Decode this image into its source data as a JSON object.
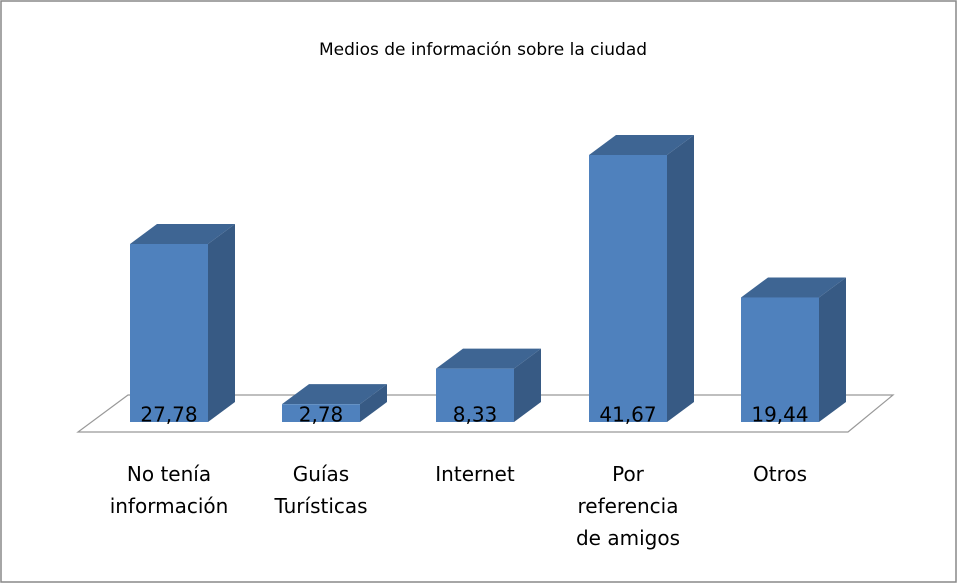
{
  "chart_data": {
    "type": "bar3d",
    "title": "Medios de información sobre la ciudad",
    "categories": [
      "No tenía información",
      "Guías Turísticas",
      "Internet",
      "Por referencia de amigos",
      "Otros"
    ],
    "values": [
      27.78,
      2.78,
      8.33,
      41.67,
      19.44
    ],
    "value_labels": [
      "27,78",
      "2,78",
      "8,33",
      "41,67",
      "19,44"
    ],
    "color": "#4f81bd"
  }
}
